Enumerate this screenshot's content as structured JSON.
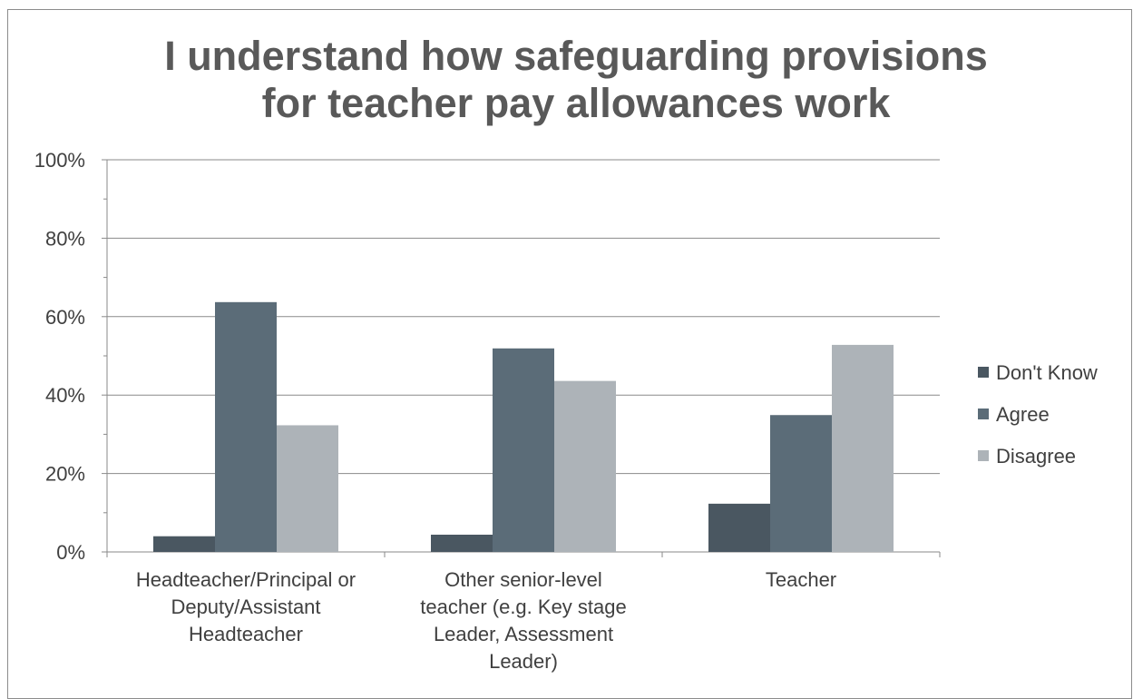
{
  "chart_data": {
    "type": "bar",
    "title_lines": [
      "I understand how safeguarding provisions",
      "for teacher pay allowances work"
    ],
    "categories": [
      [
        "Headteacher/Principal or",
        "Deputy/Assistant",
        "Headteacher"
      ],
      [
        "Other senior-level",
        "teacher (e.g. Key stage",
        "Leader, Assessment",
        "Leader)"
      ],
      [
        "Teacher"
      ]
    ],
    "series": [
      {
        "name": "Don't Know",
        "values": [
          4,
          4.4,
          12.3
        ],
        "color": "#4a5761"
      },
      {
        "name": "Agree",
        "values": [
          63.7,
          51.9,
          34.9
        ],
        "color": "#5b6c78"
      },
      {
        "name": "Disagree",
        "values": [
          32.3,
          43.6,
          52.8
        ],
        "color": "#adb3b8"
      }
    ],
    "ylim": [
      0,
      100
    ],
    "yticks": [
      "0%",
      "20%",
      "40%",
      "60%",
      "80%",
      "100%"
    ],
    "grid": true,
    "legend_position": "right"
  }
}
